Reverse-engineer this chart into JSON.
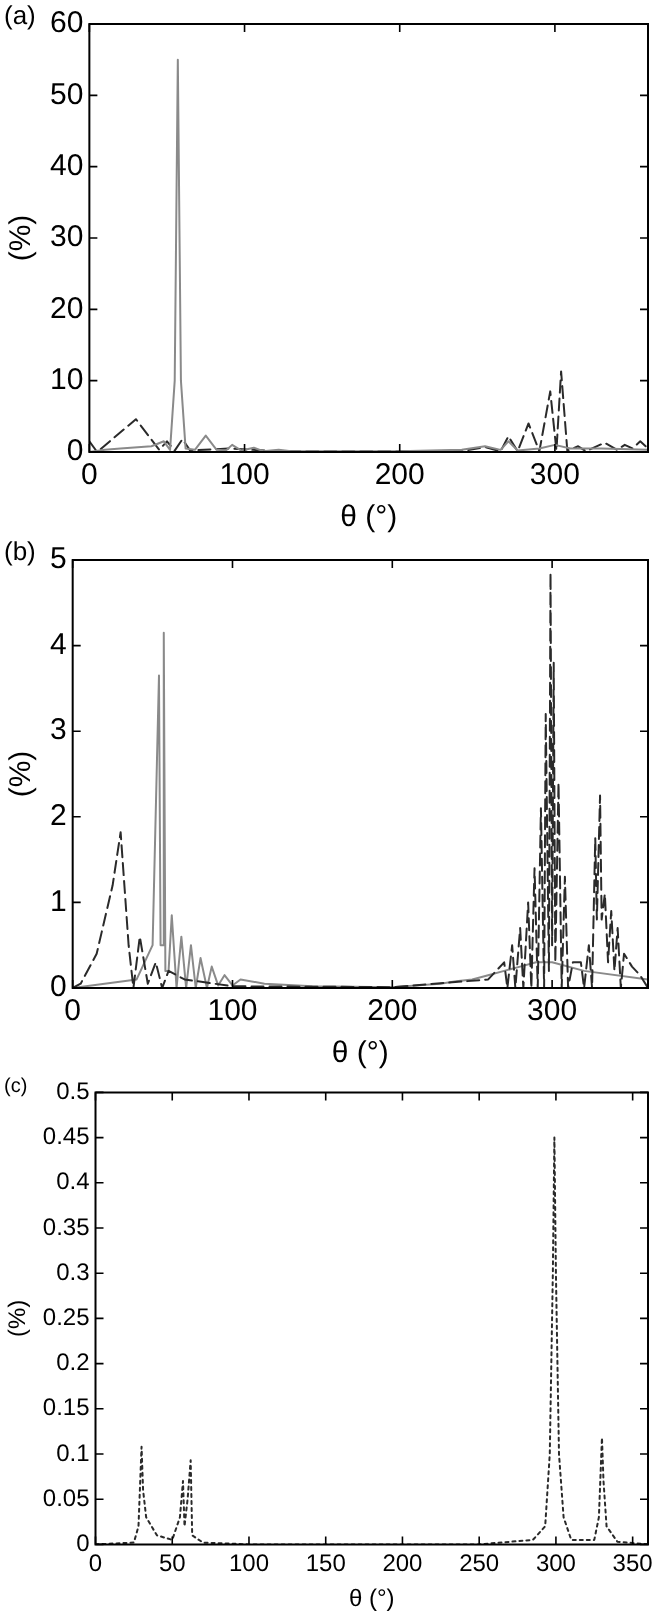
{
  "chart_data": [
    {
      "type": "line",
      "annotations": [
        "(a)"
      ],
      "xlabel": "θ (°)",
      "ylabel": "(%)",
      "xlim": [
        0,
        360
      ],
      "xticks": [
        0,
        100,
        200,
        300
      ],
      "ylim": [
        0,
        60
      ],
      "yticks": [
        0,
        10,
        20,
        30,
        40,
        50,
        60
      ],
      "grid": false,
      "legend": false,
      "marker": "none",
      "series": [
        {
          "color": "#8a8a8a",
          "line_style": "solid",
          "x": [
            0,
            10,
            20,
            40,
            48,
            52,
            55,
            57,
            59,
            62,
            68,
            75,
            82,
            88,
            92,
            98,
            106,
            112,
            122,
            130,
            150,
            200,
            240,
            255,
            265,
            270,
            276,
            290,
            300,
            310,
            330,
            360
          ],
          "values": [
            0,
            0.3,
            0.5,
            0.8,
            1.5,
            0.3,
            10,
            55,
            10,
            0.5,
            0.3,
            2.3,
            0.3,
            0.2,
            1,
            0.2,
            0.6,
            0.1,
            0.3,
            0.1,
            0.1,
            0.1,
            0.3,
            0.8,
            0.3,
            1.5,
            0.2,
            0.5,
            1,
            0.5,
            0.5,
            0.3
          ]
        },
        {
          "color": "#2a2a2a",
          "line_style": "dashed",
          "x": [
            0,
            5,
            30,
            45,
            50,
            55,
            60,
            65,
            90,
            120,
            240,
            255,
            265,
            270,
            276,
            283,
            290,
            297,
            301,
            304,
            308,
            315,
            320,
            332,
            340,
            345,
            350,
            355,
            360
          ],
          "values": [
            1.5,
            0,
            4.6,
            0.3,
            1.5,
            0.2,
            1.8,
            0.2,
            0.5,
            0.1,
            0.1,
            0.7,
            0.1,
            2.2,
            0.1,
            4,
            0.1,
            8.5,
            0.2,
            11.3,
            0.2,
            0.8,
            0.1,
            1.3,
            0.3,
            1,
            0.5,
            1.5,
            0.5
          ]
        }
      ]
    },
    {
      "type": "line",
      "annotations": [
        "(b)"
      ],
      "xlabel": "θ (°)",
      "ylabel": "(%)",
      "xlim": [
        0,
        360
      ],
      "xticks": [
        0,
        100,
        200,
        300
      ],
      "ylim": [
        0,
        5
      ],
      "yticks": [
        0,
        1,
        2,
        3,
        4,
        5
      ],
      "grid": false,
      "legend": false,
      "marker": "none",
      "series": [
        {
          "color": "#2a2a2a",
          "line_style": "dashed",
          "x": [
            0,
            5,
            15,
            25,
            30,
            35,
            38,
            42,
            47,
            52,
            56,
            60,
            70,
            100,
            200,
            260,
            270,
            272,
            275,
            277,
            280,
            282,
            285,
            287,
            289,
            291,
            293,
            295,
            296,
            298,
            299,
            300,
            301,
            302,
            304,
            306,
            308,
            310,
            313,
            318,
            320,
            323,
            325,
            327,
            328,
            330,
            331,
            333,
            335,
            337,
            339,
            341,
            343,
            345,
            350,
            355,
            360
          ],
          "values": [
            0,
            0.05,
            0.4,
            1.2,
            1.82,
            0.5,
            0,
            0.6,
            0.05,
            0.3,
            0,
            0.2,
            0.1,
            0.02,
            0.01,
            0.1,
            0.3,
            0,
            0.5,
            0,
            0.7,
            0,
            1,
            0,
            1.4,
            0,
            2.1,
            0,
            3.2,
            0.2,
            4.85,
            0.5,
            3.8,
            0.3,
            2.4,
            0,
            1.3,
            0,
            0.3,
            0.3,
            0,
            0.5,
            0,
            1.75,
            0.8,
            2.25,
            0.8,
            1.1,
            0.3,
            0.9,
            0.2,
            0.7,
            0,
            0.4,
            0.25,
            0.15,
            0
          ]
        },
        {
          "color": "#8a8a8a",
          "line_style": "solid",
          "x": [
            0,
            40,
            50,
            54,
            55,
            56,
            57,
            58,
            60,
            62,
            65,
            68,
            71,
            74,
            77,
            80,
            84,
            87,
            91,
            95,
            100,
            105,
            120,
            150,
            200,
            230,
            240,
            250,
            260,
            270,
            280,
            290,
            300,
            320,
            360
          ],
          "values": [
            0,
            0.1,
            0.5,
            3.65,
            0.5,
            0.5,
            4.15,
            0.2,
            0.2,
            0.85,
            0,
            0.6,
            0,
            0.5,
            0,
            0.35,
            0,
            0.25,
            0.03,
            0.15,
            0.03,
            0.1,
            0.05,
            0.02,
            0.01,
            0.05,
            0.08,
            0.1,
            0.15,
            0.2,
            0.25,
            0.3,
            0.3,
            0.2,
            0.1
          ]
        }
      ]
    },
    {
      "type": "line",
      "annotations": [
        "(c)"
      ],
      "xlabel": "θ (°)",
      "ylabel": "(%)",
      "xlim": [
        0,
        360
      ],
      "xticks": [
        0,
        50,
        100,
        150,
        200,
        250,
        300,
        350
      ],
      "ylim": [
        0,
        0.5
      ],
      "yticks": [
        0,
        0.05,
        0.1,
        0.15,
        0.2,
        0.25,
        0.3,
        0.35,
        0.4,
        0.45,
        0.5
      ],
      "grid": false,
      "legend": false,
      "marker": "none",
      "series": [
        {
          "color": "#2a2a2a",
          "line_style": "dotted",
          "x": [
            0,
            25,
            28,
            30,
            31,
            33,
            40,
            50,
            55,
            57,
            58,
            60,
            62,
            63,
            70,
            100,
            250,
            285,
            293,
            296,
            298,
            299,
            300,
            302,
            305,
            310,
            325,
            328,
            330,
            331,
            333,
            340,
            360
          ],
          "values": [
            0,
            0.002,
            0.02,
            0.108,
            0.06,
            0.03,
            0.01,
            0.005,
            0.03,
            0.07,
            0.02,
            0.05,
            0.093,
            0.01,
            0.002,
            0,
            0,
            0.005,
            0.02,
            0.1,
            0.3,
            0.45,
            0.3,
            0.1,
            0.03,
            0.005,
            0.005,
            0.03,
            0.118,
            0.07,
            0.02,
            0.003,
            0
          ]
        }
      ]
    }
  ]
}
